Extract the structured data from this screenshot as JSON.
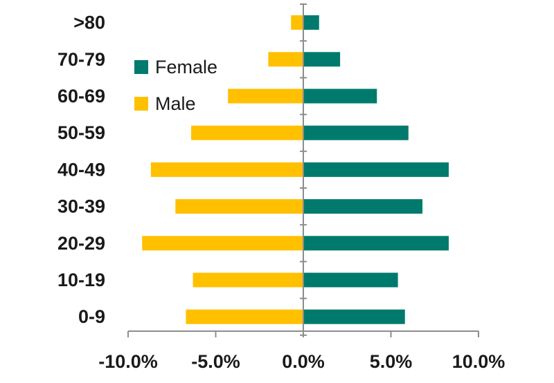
{
  "chart_data": {
    "type": "bar",
    "orientation": "horizontal",
    "categories": [
      ">80",
      "70-79",
      "60-69",
      "50-59",
      "40-49",
      "30-39",
      "20-29",
      "10-19",
      "0-9"
    ],
    "series": [
      {
        "name": "Female",
        "color": "#007A6C",
        "values": [
          0.9,
          2.1,
          4.2,
          6.0,
          8.3,
          6.8,
          8.3,
          5.4,
          5.8
        ]
      },
      {
        "name": "Male",
        "color": "#FFC000",
        "values": [
          -0.7,
          -2.0,
          -4.3,
          -6.4,
          -8.7,
          -7.3,
          -9.2,
          -6.3,
          -6.7
        ]
      }
    ],
    "x_ticks": [
      "-10.0%",
      "-5.0%",
      "0.0%",
      "5.0%",
      "10.0%"
    ],
    "x_tick_values": [
      -10,
      -5,
      0,
      5,
      10
    ],
    "xlim": [
      -10,
      10
    ],
    "legend": {
      "placement": "top-left inside",
      "entries": [
        "Female",
        "Male"
      ]
    },
    "grid": false
  }
}
